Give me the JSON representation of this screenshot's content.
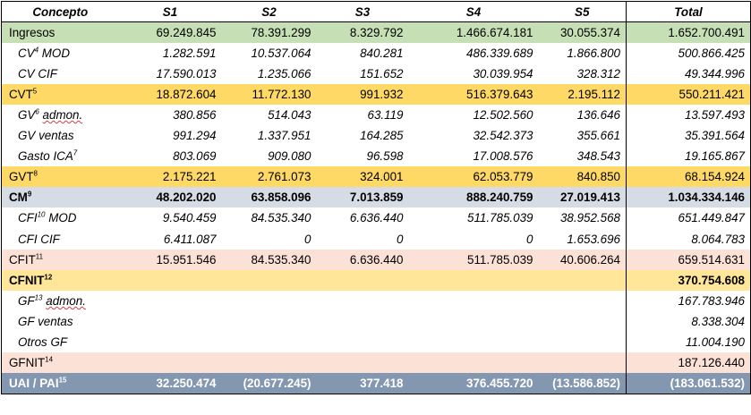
{
  "header": {
    "concepto": "Concepto",
    "s1": "S1",
    "s2": "S2",
    "s3": "S3",
    "s4": "S4",
    "s5": "S5",
    "total": "Total"
  },
  "rows": [
    {
      "label": "Ingresos",
      "sup": "",
      "s1": "69.249.845",
      "s2": "78.391.299",
      "s3": "8.329.792",
      "s4": "1.466.674.181",
      "s5": "30.055.374",
      "total": "1.652.700.491"
    },
    {
      "label": "CV",
      "sup": "4",
      "suffix": " MOD",
      "s1": "1.282.591",
      "s2": "10.537.064",
      "s3": "840.281",
      "s4": "486.339.689",
      "s5": "1.866.800",
      "total": "500.866.425"
    },
    {
      "label": "CV CIF",
      "sup": "",
      "s1": "17.590.013",
      "s2": "1.235.066",
      "s3": "151.652",
      "s4": "30.039.954",
      "s5": "328.312",
      "total": "49.344.996"
    },
    {
      "label": "CVT",
      "sup": "5",
      "s1": "18.872.604",
      "s2": "11.772.130",
      "s3": "991.932",
      "s4": "516.379.643",
      "s5": "2.195.112",
      "total": "550.211.421"
    },
    {
      "label": "GV",
      "sup": "6",
      "suffix": " admon.",
      "s1": "380.856",
      "s2": "514.043",
      "s3": "63.119",
      "s4": "12.502.560",
      "s5": "136.646",
      "total": "13.597.493"
    },
    {
      "label": "GV ventas",
      "sup": "",
      "s1": "991.294",
      "s2": "1.337.951",
      "s3": "164.285",
      "s4": "32.542.373",
      "s5": "355.661",
      "total": "35.391.564"
    },
    {
      "label": "Gasto ICA",
      "sup": "7",
      "s1": "803.069",
      "s2": "909.080",
      "s3": "96.598",
      "s4": "17.008.576",
      "s5": "348.543",
      "total": "19.165.867"
    },
    {
      "label": "GVT",
      "sup": "8",
      "s1": "2.175.221",
      "s2": "2.761.073",
      "s3": "324.001",
      "s4": "62.053.779",
      "s5": "840.850",
      "total": "68.154.924"
    },
    {
      "label": "CM",
      "sup": "9",
      "s1": "48.202.020",
      "s2": "63.858.096",
      "s3": "7.013.859",
      "s4": "888.240.759",
      "s5": "27.019.413",
      "total": "1.034.334.146"
    },
    {
      "label": "CFI",
      "sup": "10",
      "suffix": " MOD",
      "s1": "9.540.459",
      "s2": "84.535.340",
      "s3": "6.636.440",
      "s4": "511.785.039",
      "s5": "38.952.568",
      "total": "651.449.847"
    },
    {
      "label": "CFI CIF",
      "sup": "",
      "s1": "6.411.087",
      "s2": "0",
      "s3": "0",
      "s4": "0",
      "s5": "1.653.696",
      "total": "8.064.783"
    },
    {
      "label": "CFIT",
      "sup": "11",
      "s1": "15.951.546",
      "s2": "84.535.340",
      "s3": "6.636.440",
      "s4": "511.785.039",
      "s5": "40.606.264",
      "total": "659.514.631"
    },
    {
      "label": "CFNIT",
      "sup": "12",
      "s1": "",
      "s2": "",
      "s3": "",
      "s4": "",
      "s5": "",
      "total": "370.754.608"
    },
    {
      "label": "GF",
      "sup": "13",
      "suffix": " admon.",
      "s1": "",
      "s2": "",
      "s3": "",
      "s4": "",
      "s5": "",
      "total": "167.783.946"
    },
    {
      "label": "GF ventas",
      "sup": "",
      "s1": "",
      "s2": "",
      "s3": "",
      "s4": "",
      "s5": "",
      "total": "8.338.304"
    },
    {
      "label": "Otros GF",
      "sup": "",
      "s1": "",
      "s2": "",
      "s3": "",
      "s4": "",
      "s5": "",
      "total": "11.004.190"
    },
    {
      "label": "GFNIT",
      "sup": "14",
      "s1": "",
      "s2": "",
      "s3": "",
      "s4": "",
      "s5": "",
      "total": "187.126.440"
    },
    {
      "label": "UAI / PAI",
      "sup": "15",
      "s1": "32.250.474",
      "s2": "(20.677.245)",
      "s3": "377.418",
      "s4": "376.455.720",
      "s5": "(13.586.852)",
      "total": "(183.061.532)"
    }
  ],
  "colors": {
    "ingresos": "#c6dfb4",
    "highlight_yellow": "#ffd966",
    "cm_blue": "#d6dce5",
    "pink": "#fbe1d6",
    "light_yellow": "#ffe699",
    "footer_blue": "#8497b0"
  }
}
